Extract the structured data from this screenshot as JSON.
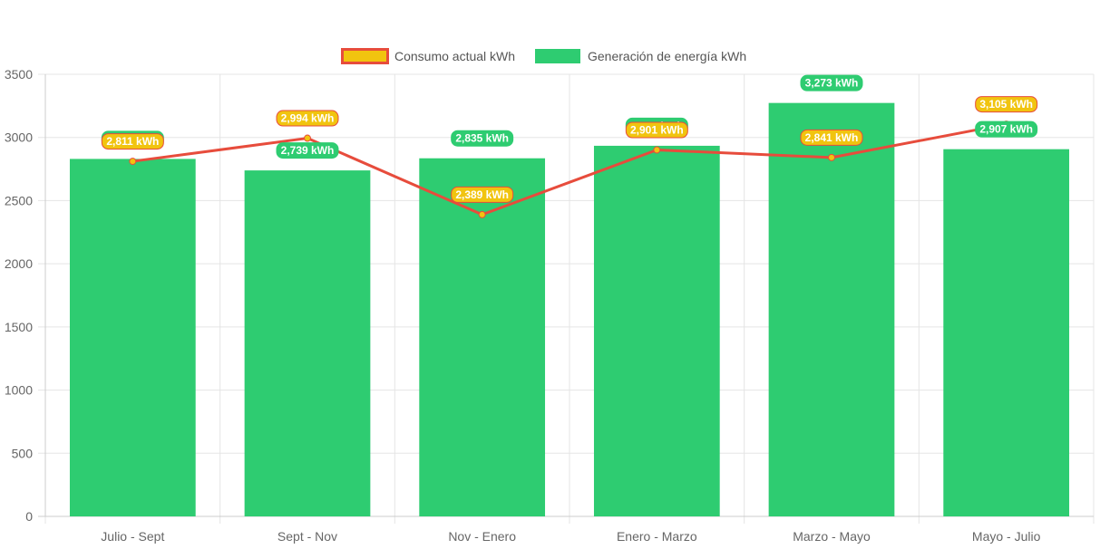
{
  "chart_data": {
    "type": "bar",
    "categories": [
      "Julio - Sept",
      "Sept - Nov",
      "Nov - Enero",
      "Enero - Marzo",
      "Marzo - Mayo",
      "Mayo - Julio"
    ],
    "series": [
      {
        "name": "Consumo actual kWh",
        "kind": "line",
        "values": [
          2811,
          2994,
          2389,
          2901,
          2841,
          3105
        ],
        "labels": [
          "2,811 kWh",
          "2,994 kWh",
          "2,389 kWh",
          "2,901 kWh",
          "2,841 kWh",
          "3,105 kWh"
        ],
        "line_color": "#e74c3c",
        "fill_color": "#f1c40f"
      },
      {
        "name": "Generación de energía kWh",
        "kind": "bar",
        "values": [
          2830,
          2739,
          2835,
          2934,
          3273,
          2907
        ],
        "labels": [
          "2,830 kWh",
          "2,739 kWh",
          "2,835 kWh",
          "2,934 kWh",
          "3,273 kWh",
          "2,907 kWh"
        ],
        "color": "#2ecc71"
      }
    ],
    "ylim": [
      0,
      3500
    ],
    "yticks": [
      0,
      500,
      1000,
      1500,
      2000,
      2500,
      3000,
      3500
    ],
    "grid": true,
    "legend": "top-center",
    "title": "",
    "xlabel": "",
    "ylabel": ""
  }
}
